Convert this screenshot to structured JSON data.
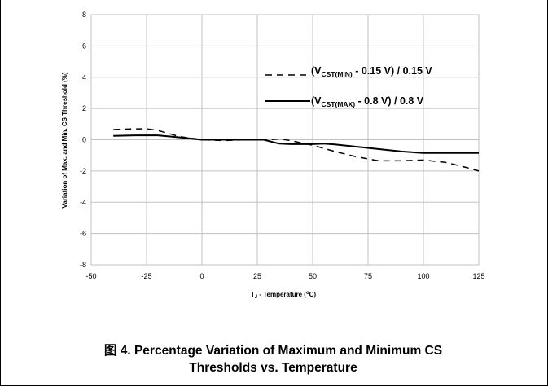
{
  "caption": {
    "line1": "图 4. Percentage Variation of Maximum and Minimum CS",
    "line2": "Thresholds vs. Temperature"
  },
  "chart_data": {
    "type": "line",
    "xlabel": {
      "base": "T",
      "sub": "J",
      "rest": " - Temperature (",
      "sup": "o",
      "end": "C)"
    },
    "ylabel": "Variation of Max. and Min. CS Threshold (%)",
    "xlim": [
      -50,
      125
    ],
    "ylim": [
      -8,
      8
    ],
    "x_ticks": [
      -50,
      -25,
      0,
      25,
      50,
      75,
      100,
      125
    ],
    "y_ticks": [
      -8,
      -6,
      -4,
      -2,
      0,
      2,
      4,
      6,
      8
    ],
    "grid": true,
    "legend_position": "top-right",
    "series": [
      {
        "name": "(VCST(MIN) - 0.15 V) / 0.15 V",
        "label": {
          "pre": "(V",
          "sub": "CST(MIN)",
          "post": " - 0.15 V) / 0.15 V"
        },
        "style": "dashed",
        "color": "#000000",
        "x": [
          -40,
          -30,
          -25,
          -20,
          -10,
          0,
          10,
          20,
          25,
          30,
          35,
          40,
          50,
          60,
          70,
          80,
          90,
          100,
          110,
          120,
          125
        ],
        "y": [
          0.65,
          0.7,
          0.7,
          0.6,
          0.2,
          0.0,
          -0.05,
          0.0,
          0.0,
          0.0,
          0.05,
          -0.05,
          -0.35,
          -0.75,
          -1.1,
          -1.35,
          -1.35,
          -1.3,
          -1.45,
          -1.8,
          -2.0
        ]
      },
      {
        "name": "(VCST(MAX) - 0.8 V) / 0.8 V",
        "label": {
          "pre": "(V",
          "sub": "CST(MAX)",
          "post": " - 0.8 V) / 0.8 V"
        },
        "style": "solid",
        "color": "#000000",
        "x": [
          -40,
          -30,
          -20,
          -10,
          0,
          10,
          20,
          25,
          28,
          32,
          35,
          40,
          50,
          55,
          60,
          70,
          80,
          90,
          100,
          110,
          120,
          125
        ],
        "y": [
          0.25,
          0.28,
          0.28,
          0.15,
          0.0,
          0.0,
          0.0,
          0.0,
          0.0,
          -0.15,
          -0.25,
          -0.28,
          -0.28,
          -0.25,
          -0.3,
          -0.45,
          -0.6,
          -0.75,
          -0.85,
          -0.85,
          -0.85,
          -0.85
        ]
      }
    ]
  }
}
